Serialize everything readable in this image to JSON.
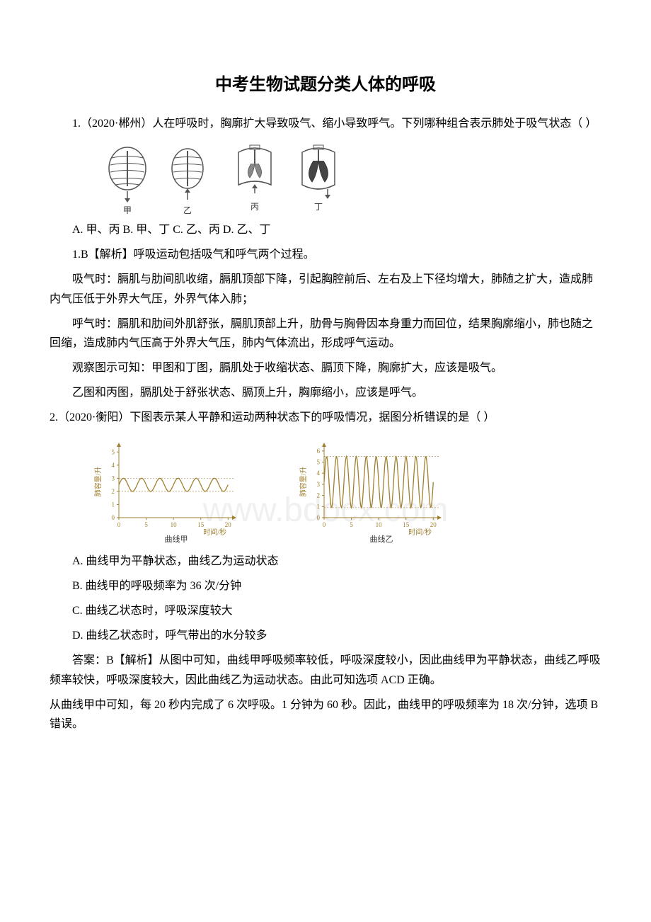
{
  "title": "中考生物试题分类人体的呼吸",
  "q1": {
    "stem": "1.（2020·郴州）人在呼吸时，胸廓扩大导致吸气、缩小导致呼气。下列哪种组合表示肺处于吸气状态（ ）",
    "options": "A. 甲、丙 B. 甲、丁 C. 乙、丙 D. 乙、丁",
    "answer_label": "1.B【解析】呼吸运动包括吸气和呼气两个过程。",
    "expl_p1": "吸气时：膈肌与肋间肌收缩，膈肌顶部下降，引起胸腔前后、左右及上下径均增大，肺随之扩大，造成肺内气压低于外界大气压，外界气体入肺；",
    "expl_p2": "呼气时：膈肌和肋间外肌舒张，膈肌顶部上升，肋骨与胸骨因本身重力而回位，结果胸廓缩小，肺也随之回缩，造成肺内气压高于外界大气压，肺内气体流出，形成呼气运动。",
    "expl_p3": "观察图示可知：甲图和丁图，膈肌处于收缩状态、膈顶下降，胸廓扩大，应该是吸气。",
    "expl_p4": "乙图和丙图，膈肌处于舒张状态、膈顶上升，胸廓缩小，应该是呼气。",
    "figure": {
      "labels": [
        "甲",
        "乙",
        "丙",
        "丁"
      ],
      "stroke": "#555555",
      "fill": "#999999"
    }
  },
  "q2": {
    "stem": "2.（2020·衡阳）下图表示某人平静和运动两种状态下的呼吸情况，据图分析错误的是（ ）",
    "optA": "A. 曲线甲为平静状态，曲线乙为运动状态",
    "optB": "B. 曲线甲的呼吸频率为 36 次/分钟",
    "optC": "C. 曲线乙状态时，呼吸深度较大",
    "optD": "D. 曲线乙状态时，呼气带出的水分较多",
    "answer_p1": "答案：B【解析】从图中可知，曲线甲呼吸频率较低，呼吸深度较小，因此曲线甲为平静状态，曲线乙呼吸频率较快，呼吸深度较大，因此曲线乙为运动状态。由此可知选项 ACD 正确。",
    "answer_p2": "从曲线甲中可知，每 20 秒内完成了 6 次呼吸。1 分钟为 60 秒。因此，曲线甲的呼吸频率为 18 次/分钟，选项 B 错误。",
    "chart_a": {
      "ylabel": "肺容量/升",
      "xlabel": "时间/秒",
      "title": "曲线甲",
      "yticks": [
        0,
        1,
        2,
        3,
        4,
        5
      ],
      "xticks": [
        0,
        5,
        10,
        15,
        20
      ],
      "ymin": 0,
      "ymax": 5.5,
      "xmin": 0,
      "xmax": 21,
      "baseline": 2.5,
      "amplitude": 0.5,
      "cycles": 6,
      "line_color": "#a08030",
      "axis_color": "#a08030",
      "background": "#ffffff"
    },
    "chart_b": {
      "ylabel": "肺容量/升",
      "xlabel": "时间/秒",
      "title": "曲线乙",
      "yticks": [
        0,
        1,
        2,
        3,
        4,
        5,
        6
      ],
      "xticks": [
        0,
        5,
        10,
        15,
        20
      ],
      "ymin": 0,
      "ymax": 6.5,
      "xmin": 0,
      "xmax": 21,
      "baseline": 3.2,
      "amplitude": 2.3,
      "cycles": 11,
      "line_color": "#a08030",
      "axis_color": "#a08030",
      "background": "#ffffff"
    }
  },
  "watermark": "www.bdocx.com"
}
